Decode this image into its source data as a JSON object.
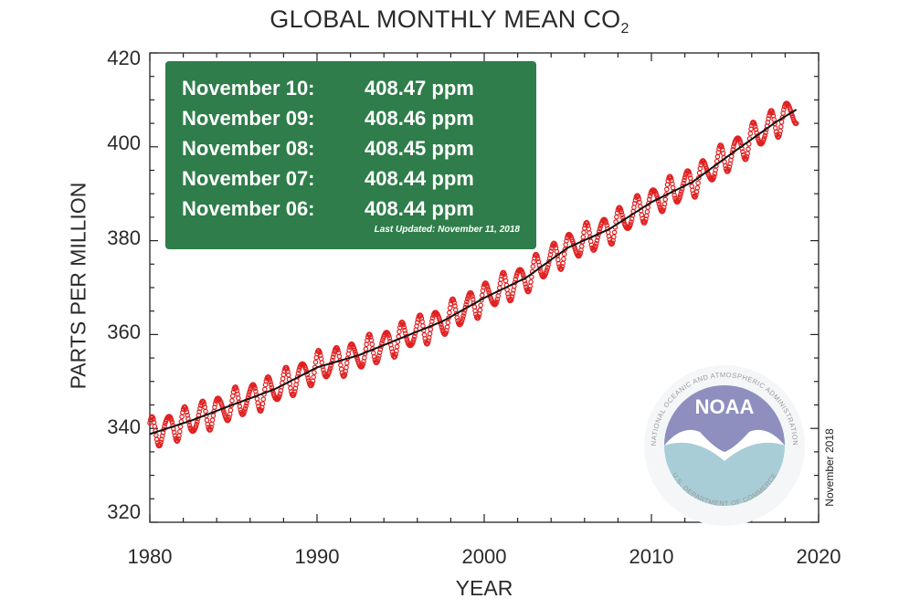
{
  "chart_data": {
    "type": "line",
    "title": "GLOBAL MONTHLY MEAN CO",
    "title_subscript": "2",
    "xlabel": "YEAR",
    "ylabel": "PARTS PER MILLION",
    "xlim": [
      1980,
      2020
    ],
    "ylim": [
      320,
      420
    ],
    "xticks": [
      "1980",
      "1990",
      "2000",
      "2010",
      "2020"
    ],
    "yticks": [
      "420",
      "400",
      "380",
      "360",
      "340",
      "320"
    ],
    "grid": false,
    "side_note": "November 2018",
    "series": [
      {
        "style": "red markers with seasonal cycle",
        "color": "#e02020",
        "x": [
          1980.0,
          1982.5,
          1985.0,
          1987.5,
          1990.0,
          1992.5,
          1995.0,
          1997.5,
          2000.0,
          2002.5,
          2005.0,
          2007.5,
          2010.0,
          2012.5,
          2015.0,
          2017.5,
          2018.7
        ],
        "y": [
          338.8,
          341.7,
          345.1,
          348.4,
          353.0,
          355.6,
          359.2,
          362.8,
          367.8,
          372.1,
          378.5,
          382.5,
          388.2,
          392.6,
          399.1,
          405.4,
          408.0
        ]
      },
      {
        "style": "black trend line",
        "color": "#111111",
        "x": [
          1980.0,
          1982.5,
          1985.0,
          1987.5,
          1990.0,
          1992.5,
          1995.0,
          1997.5,
          2000.0,
          2002.5,
          2005.0,
          2007.5,
          2010.0,
          2012.5,
          2015.0,
          2017.5,
          2018.7
        ],
        "y": [
          338.8,
          341.7,
          345.1,
          348.4,
          353.0,
          355.6,
          359.2,
          362.8,
          367.8,
          372.1,
          378.5,
          382.5,
          388.2,
          392.6,
          399.1,
          405.4,
          408.0
        ]
      }
    ]
  },
  "info_box": {
    "readings": [
      {
        "date": "November 10:",
        "value": "408.47 ppm"
      },
      {
        "date": "November 09:",
        "value": "408.46 ppm"
      },
      {
        "date": "November 08:",
        "value": "408.45 ppm"
      },
      {
        "date": "November 07:",
        "value": "408.44 ppm"
      },
      {
        "date": "November 06:",
        "value": "408.44 ppm"
      }
    ],
    "last_updated": "Last Updated: November 11, 2018",
    "background_color": "#2e7d4a"
  },
  "logo": {
    "name": "NOAA",
    "ring_text": "NATIONAL OCEANIC AND ATMOSPHERIC ADMINISTRATION",
    "ring_text_bottom": "U.S. DEPARTMENT OF COMMERCE",
    "icon": "noaa-logo-icon"
  }
}
